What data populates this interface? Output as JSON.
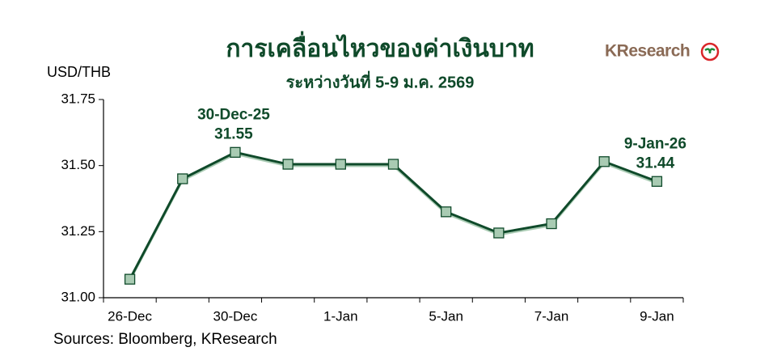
{
  "chart_data": {
    "type": "line",
    "title": "การเคลื่อนไหวของค่าเงินบาท",
    "subtitle": "ระหว่างวันที่ 5-9 ม.ค. 2569",
    "y_label": "USD/THB",
    "source": "Sources: Bloomberg, KResearch",
    "logo": "KResearch",
    "categories": [
      "26-Dec",
      null,
      "30-Dec",
      null,
      "1-Jan",
      null,
      "5-Jan",
      null,
      "7-Jan",
      null,
      "9-Jan"
    ],
    "series": [
      {
        "name": "USD/THB",
        "color": "#0f4a2a",
        "marker_color": "#a9cbb3",
        "values": [
          31.07,
          31.45,
          31.55,
          31.505,
          31.505,
          31.505,
          31.325,
          31.245,
          31.28,
          31.515,
          31.44
        ],
        "point_labels": [
          null,
          null,
          "30-Dec-25",
          null,
          null,
          null,
          null,
          null,
          null,
          null,
          "9-Jan-26"
        ]
      }
    ],
    "ylim": [
      31,
      31.75
    ],
    "yticks": [
      {
        "value": 31,
        "label": "31.00"
      },
      31.25,
      {
        "value": 31.5,
        "label": "31.50"
      },
      31.75
    ],
    "grid": false
  }
}
